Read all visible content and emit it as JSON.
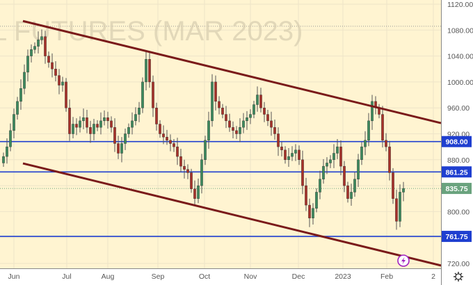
{
  "chart_data": {
    "type": "candlestick",
    "watermark": "L FUTURES (MAR 2023)",
    "ylim": [
      720,
      1120
    ],
    "y_ticks": [
      "1120.00",
      "1080.00",
      "1040.00",
      "1000.00",
      "960.00",
      "920.00",
      "880.00",
      "800.00",
      "720.00"
    ],
    "y_tick_values": [
      1120,
      1080,
      1040,
      1000,
      960,
      920,
      880,
      800,
      720
    ],
    "x_ticks": [
      {
        "label": "Jun",
        "index": 3
      },
      {
        "label": "Jul",
        "index": 18.2
      },
      {
        "label": "Aug",
        "index": 30
      },
      {
        "label": "Sep",
        "index": 44.4
      },
      {
        "label": "Oct",
        "index": 57.8
      },
      {
        "label": "Nov",
        "index": 71
      },
      {
        "label": "Dec",
        "index": 84.8
      },
      {
        "label": "2023",
        "index": 97.6
      },
      {
        "label": "Feb",
        "index": 110.2
      },
      {
        "label": "2",
        "index": 123.6
      }
    ],
    "close": [
      885,
      900,
      925,
      950,
      970,
      990,
      1015,
      1040,
      1050,
      1055,
      1065,
      1070,
      1040,
      1030,
      1020,
      1010,
      995,
      1000,
      960,
      920,
      935,
      930,
      940,
      945,
      930,
      920,
      935,
      930,
      940,
      945,
      940,
      930,
      905,
      890,
      905,
      920,
      930,
      940,
      950,
      960,
      1000,
      1035,
      1000,
      960,
      935,
      920,
      915,
      910,
      905,
      900,
      885,
      870,
      865,
      860,
      835,
      820,
      840,
      880,
      910,
      940,
      1000,
      970,
      960,
      950,
      940,
      930,
      925,
      920,
      930,
      940,
      945,
      950,
      965,
      980,
      960,
      950,
      940,
      930,
      920,
      900,
      895,
      880,
      885,
      890,
      895,
      880,
      840,
      810,
      790,
      805,
      830,
      850,
      870,
      875,
      880,
      890,
      900,
      870,
      840,
      820,
      830,
      850,
      880,
      900,
      910,
      940,
      970,
      960,
      950,
      910,
      900,
      860,
      820,
      785,
      830,
      835.75
    ],
    "horizontal_levels": [
      {
        "price": 908.0,
        "label": "908.00",
        "color": "#1f3fd0"
      },
      {
        "price": 861.25,
        "label": "861.25",
        "color": "#1f3fd0"
      },
      {
        "price": 761.75,
        "label": "761.75",
        "color": "#1f3fd0"
      }
    ],
    "last_price": {
      "price": 835.75,
      "label": "835.75",
      "color": "#6aa37e"
    },
    "dotted_level": 1086,
    "trendlines": [
      {
        "from": [
          5.6,
          1094
        ],
        "to": [
          125.8,
          936.6
        ],
        "color": "#7a1a1a"
      },
      {
        "from": [
          5.6,
          874.4
        ],
        "to": [
          125.8,
          716.8
        ],
        "color": "#7a1a1a"
      }
    ],
    "colors": {
      "background": "#fff4d1",
      "up": "#3d8a5e",
      "down": "#a8322a",
      "grid": "#ede4c8"
    },
    "grid": true
  },
  "icons": {
    "flash": "lightning-icon",
    "settings": "gear-icon"
  }
}
